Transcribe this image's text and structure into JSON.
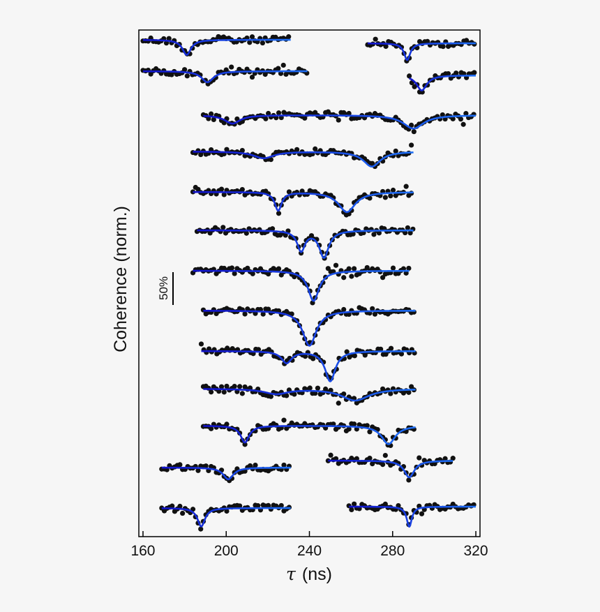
{
  "chart_data": {
    "type": "scatter",
    "xlabel_symbol": "τ",
    "xlabel_unit": "(ns)",
    "ylabel": "Coherence (norm.)",
    "xlim": [
      158,
      322
    ],
    "x_ticks": [
      160,
      200,
      240,
      280,
      320
    ],
    "scale_bar_label": "50%",
    "marker_color": "#111111",
    "fit_colors": [
      "#1212cc",
      "#1e6ff5"
    ],
    "traces": [
      {
        "x_start": 160,
        "x_end": 231,
        "dips": [
          {
            "x": 181,
            "depth": 0.45,
            "width": 2.5
          }
        ]
      },
      {
        "x_start": 268,
        "x_end": 320,
        "dips": [
          {
            "x": 287,
            "depth": 0.5,
            "width": 1.8
          }
        ]
      },
      {
        "x_start": 160,
        "x_end": 239,
        "dips": [
          {
            "x": 191,
            "depth": 0.33,
            "width": 3.5
          }
        ]
      },
      {
        "x_start": 288,
        "x_end": 320,
        "dips": [
          {
            "x": 294,
            "depth": 0.45,
            "width": 3.0
          }
        ]
      },
      {
        "x_start": 189,
        "x_end": 320,
        "dips": [
          {
            "x": 203,
            "depth": 0.25,
            "width": 4.5
          },
          {
            "x": 290,
            "depth": 0.4,
            "width": 6
          }
        ]
      },
      {
        "x_start": 184,
        "x_end": 290,
        "dips": [
          {
            "x": 218,
            "depth": 0.2,
            "width": 6
          },
          {
            "x": 270,
            "depth": 0.45,
            "width": 5
          }
        ]
      },
      {
        "x_start": 184,
        "x_end": 290,
        "dips": [
          {
            "x": 225,
            "depth": 0.55,
            "width": 2
          },
          {
            "x": 258,
            "depth": 0.6,
            "width": 5
          }
        ]
      },
      {
        "x_start": 186,
        "x_end": 290,
        "dips": [
          {
            "x": 236,
            "depth": 0.6,
            "width": 2.3
          },
          {
            "x": 247,
            "depth": 0.8,
            "width": 2.8
          }
        ]
      },
      {
        "x_start": 184,
        "x_end": 288,
        "dips": [
          {
            "x": 242,
            "depth": 0.9,
            "width": 3.2
          }
        ]
      },
      {
        "x_start": 189,
        "x_end": 291,
        "dips": [
          {
            "x": 240,
            "depth": 1.05,
            "width": 4
          }
        ]
      },
      {
        "x_start": 188,
        "x_end": 291,
        "dips": [
          {
            "x": 229,
            "depth": 0.35,
            "width": 3
          },
          {
            "x": 250,
            "depth": 0.9,
            "width": 3
          }
        ]
      },
      {
        "x_start": 189,
        "x_end": 291,
        "dips": [
          {
            "x": 224,
            "depth": 0.15,
            "width": 7
          },
          {
            "x": 262,
            "depth": 0.35,
            "width": 8
          }
        ]
      },
      {
        "x_start": 189,
        "x_end": 291,
        "dips": [
          {
            "x": 209,
            "depth": 0.5,
            "width": 2.5
          },
          {
            "x": 278,
            "depth": 0.55,
            "width": 4
          }
        ]
      },
      {
        "x_start": 169,
        "x_end": 231,
        "dips": [
          {
            "x": 201,
            "depth": 0.35,
            "width": 3
          }
        ]
      },
      {
        "x_start": 249,
        "x_end": 309,
        "dips": [
          {
            "x": 288,
            "depth": 0.5,
            "width": 3
          }
        ]
      },
      {
        "x_start": 169,
        "x_end": 231,
        "dips": [
          {
            "x": 188,
            "depth": 0.55,
            "width": 2.2
          }
        ]
      },
      {
        "x_start": 259,
        "x_end": 320,
        "dips": [
          {
            "x": 288,
            "depth": 0.6,
            "width": 1.5
          }
        ]
      }
    ]
  }
}
